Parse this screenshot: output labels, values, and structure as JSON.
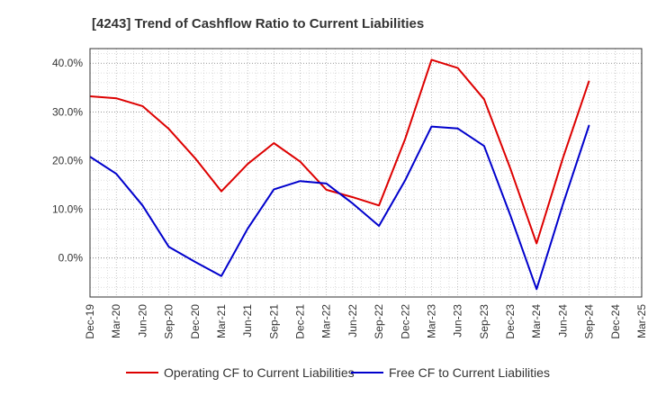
{
  "chart_data": {
    "type": "line",
    "title": "[4243]  Trend of Cashflow Ratio to Current Liabilities",
    "categories": [
      "Dec-19",
      "Mar-20",
      "Jun-20",
      "Sep-20",
      "Dec-20",
      "Mar-21",
      "Jun-21",
      "Sep-21",
      "Dec-21",
      "Mar-22",
      "Jun-22",
      "Sep-22",
      "Dec-22",
      "Mar-23",
      "Jun-23",
      "Sep-23",
      "Dec-23",
      "Mar-24",
      "Jun-24",
      "Sep-24",
      "Dec-24",
      "Mar-25"
    ],
    "yticks": [
      0,
      10,
      20,
      30,
      40
    ],
    "ytick_labels": [
      "0.0%",
      "10.0%",
      "20.0%",
      "30.0%",
      "40.0%"
    ],
    "ylim": [
      -8,
      43
    ],
    "grid": true,
    "legend_position": "bottom",
    "series": [
      {
        "name": "Operating CF to Current Liabilities",
        "color": "#dd0000",
        "values": [
          33.2,
          32.8,
          31.2,
          26.5,
          20.5,
          13.7,
          19.3,
          23.6,
          19.8,
          14.0,
          12.5,
          10.8,
          24.5,
          40.7,
          39.0,
          32.6,
          18.4,
          3.0,
          20.5,
          36.4,
          null,
          null
        ]
      },
      {
        "name": "Free CF to Current Liabilities",
        "color": "#0000cc",
        "values": [
          20.8,
          17.3,
          10.8,
          2.3,
          -0.8,
          -3.7,
          6.0,
          14.1,
          15.8,
          15.3,
          11.2,
          6.6,
          16.0,
          27.0,
          26.6,
          23.0,
          8.8,
          -6.4,
          11.0,
          27.3,
          null,
          null
        ]
      }
    ]
  }
}
